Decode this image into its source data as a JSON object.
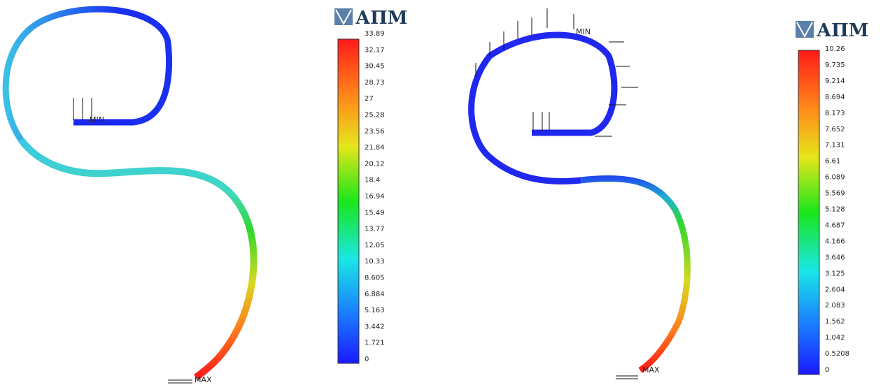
{
  "panels": [
    {
      "logo": "АПМ",
      "min_label": "MIN",
      "max_label": "MAX",
      "legend": [
        "33.89",
        "32.17",
        "30.45",
        "28.73",
        "27",
        "25.28",
        "23.56",
        "21.84",
        "20.12",
        "18.4",
        "16.94",
        "15.49",
        "13.77",
        "12.05",
        "10.33",
        "8.605",
        "6.884",
        "5.163",
        "3.442",
        "1.721",
        "0"
      ]
    },
    {
      "logo": "АПМ",
      "min_label": "MIN",
      "max_label": "MAX",
      "legend": [
        "10.26",
        "9.735",
        "9.214",
        "8.694",
        "8.173",
        "7.652",
        "7.131",
        "6.61",
        "6.089",
        "5.569",
        "5.128",
        "4.687",
        "4.166",
        "3.646",
        "3.125",
        "2.604",
        "2.083",
        "1.562",
        "1.042",
        "0.5208",
        "0"
      ]
    }
  ]
}
